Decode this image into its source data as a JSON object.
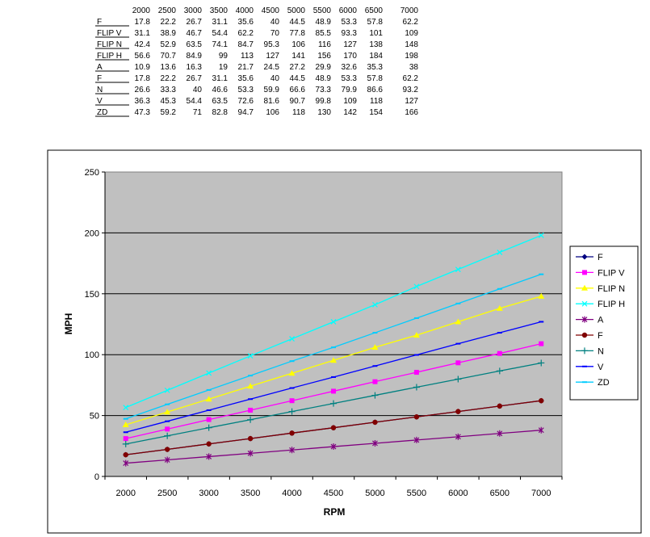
{
  "table": {
    "headers": [
      "2000",
      "2500",
      "3000",
      "3500",
      "4000",
      "4500",
      "5000",
      "5500",
      "6000",
      "6500",
      "7000"
    ],
    "rows": [
      {
        "label": "F",
        "values": [
          "17.8",
          "22.2",
          "26.7",
          "31.1",
          "35.6",
          "40",
          "44.5",
          "48.9",
          "53.3",
          "57.8",
          "62.2"
        ]
      },
      {
        "label": "FLIP V",
        "values": [
          "31.1",
          "38.9",
          "46.7",
          "54.4",
          "62.2",
          "70",
          "77.8",
          "85.5",
          "93.3",
          "101",
          "109"
        ]
      },
      {
        "label": "FLIP N",
        "values": [
          "42.4",
          "52.9",
          "63.5",
          "74.1",
          "84.7",
          "95.3",
          "106",
          "116",
          "127",
          "138",
          "148"
        ]
      },
      {
        "label": "FLIP H",
        "values": [
          "56.6",
          "70.7",
          "84.9",
          "99",
          "113",
          "127",
          "141",
          "156",
          "170",
          "184",
          "198"
        ]
      },
      {
        "label": "A",
        "values": [
          "10.9",
          "13.6",
          "16.3",
          "19",
          "21.7",
          "24.5",
          "27.2",
          "29.9",
          "32.6",
          "35.3",
          "38"
        ]
      },
      {
        "label": "F",
        "values": [
          "17.8",
          "22.2",
          "26.7",
          "31.1",
          "35.6",
          "40",
          "44.5",
          "48.9",
          "53.3",
          "57.8",
          "62.2"
        ]
      },
      {
        "label": "N",
        "values": [
          "26.6",
          "33.3",
          "40",
          "46.6",
          "53.3",
          "59.9",
          "66.6",
          "73.3",
          "79.9",
          "86.6",
          "93.2"
        ]
      },
      {
        "label": "V",
        "values": [
          "36.3",
          "45.3",
          "54.4",
          "63.5",
          "72.6",
          "81.6",
          "90.7",
          "99.8",
          "109",
          "118",
          "127"
        ]
      },
      {
        "label": "ZD",
        "values": [
          "47.3",
          "59.2",
          "71",
          "82.8",
          "94.7",
          "106",
          "118",
          "130",
          "142",
          "154",
          "166"
        ]
      }
    ]
  },
  "chart_data": {
    "type": "line",
    "title": "",
    "xlabel": "RPM",
    "ylabel": "MPH",
    "categories": [
      "2000",
      "2500",
      "3000",
      "3500",
      "4000",
      "4500",
      "5000",
      "5500",
      "6000",
      "6500",
      "7000"
    ],
    "x_tick_labels": [
      "2000",
      "2500",
      "3000",
      "3500",
      "4000",
      "4500",
      "5000",
      "5500",
      "6000",
      "6500",
      "7000"
    ],
    "ylim": [
      0,
      250
    ],
    "y_ticks": [
      0,
      50,
      100,
      150,
      200,
      250
    ],
    "grid": "horizontal",
    "legend_position": "right",
    "plot_background": "#c0c0c0",
    "series": [
      {
        "name": "F",
        "color": "#000080",
        "marker": "diamond",
        "values": [
          17.8,
          22.2,
          26.7,
          31.1,
          35.6,
          40,
          44.5,
          48.9,
          53.3,
          57.8,
          62.2
        ]
      },
      {
        "name": "FLIP V",
        "color": "#ff00ff",
        "marker": "square",
        "values": [
          31.1,
          38.9,
          46.7,
          54.4,
          62.2,
          70,
          77.8,
          85.5,
          93.3,
          101,
          109
        ]
      },
      {
        "name": "FLIP N",
        "color": "#ffff00",
        "marker": "triangle",
        "values": [
          42.4,
          52.9,
          63.5,
          74.1,
          84.7,
          95.3,
          106,
          116,
          127,
          138,
          148
        ]
      },
      {
        "name": "FLIP H",
        "color": "#00ffff",
        "marker": "x",
        "values": [
          56.6,
          70.7,
          84.9,
          99,
          113,
          127,
          141,
          156,
          170,
          184,
          198
        ]
      },
      {
        "name": "A",
        "color": "#800080",
        "marker": "star",
        "values": [
          10.9,
          13.6,
          16.3,
          19,
          21.7,
          24.5,
          27.2,
          29.9,
          32.6,
          35.3,
          38
        ]
      },
      {
        "name": "F",
        "color": "#800000",
        "marker": "circle",
        "values": [
          17.8,
          22.2,
          26.7,
          31.1,
          35.6,
          40,
          44.5,
          48.9,
          53.3,
          57.8,
          62.2
        ]
      },
      {
        "name": "N",
        "color": "#008080",
        "marker": "plus",
        "values": [
          26.6,
          33.3,
          40,
          46.6,
          53.3,
          59.9,
          66.6,
          73.3,
          79.9,
          86.6,
          93.2
        ]
      },
      {
        "name": "V",
        "color": "#0000ff",
        "marker": "dash",
        "values": [
          36.3,
          45.3,
          54.4,
          63.5,
          72.6,
          81.6,
          90.7,
          99.8,
          109,
          118,
          127
        ]
      },
      {
        "name": "ZD",
        "color": "#00ccff",
        "marker": "dash",
        "values": [
          47.3,
          59.2,
          71,
          82.8,
          94.7,
          106,
          118,
          130,
          142,
          154,
          166
        ]
      }
    ]
  }
}
